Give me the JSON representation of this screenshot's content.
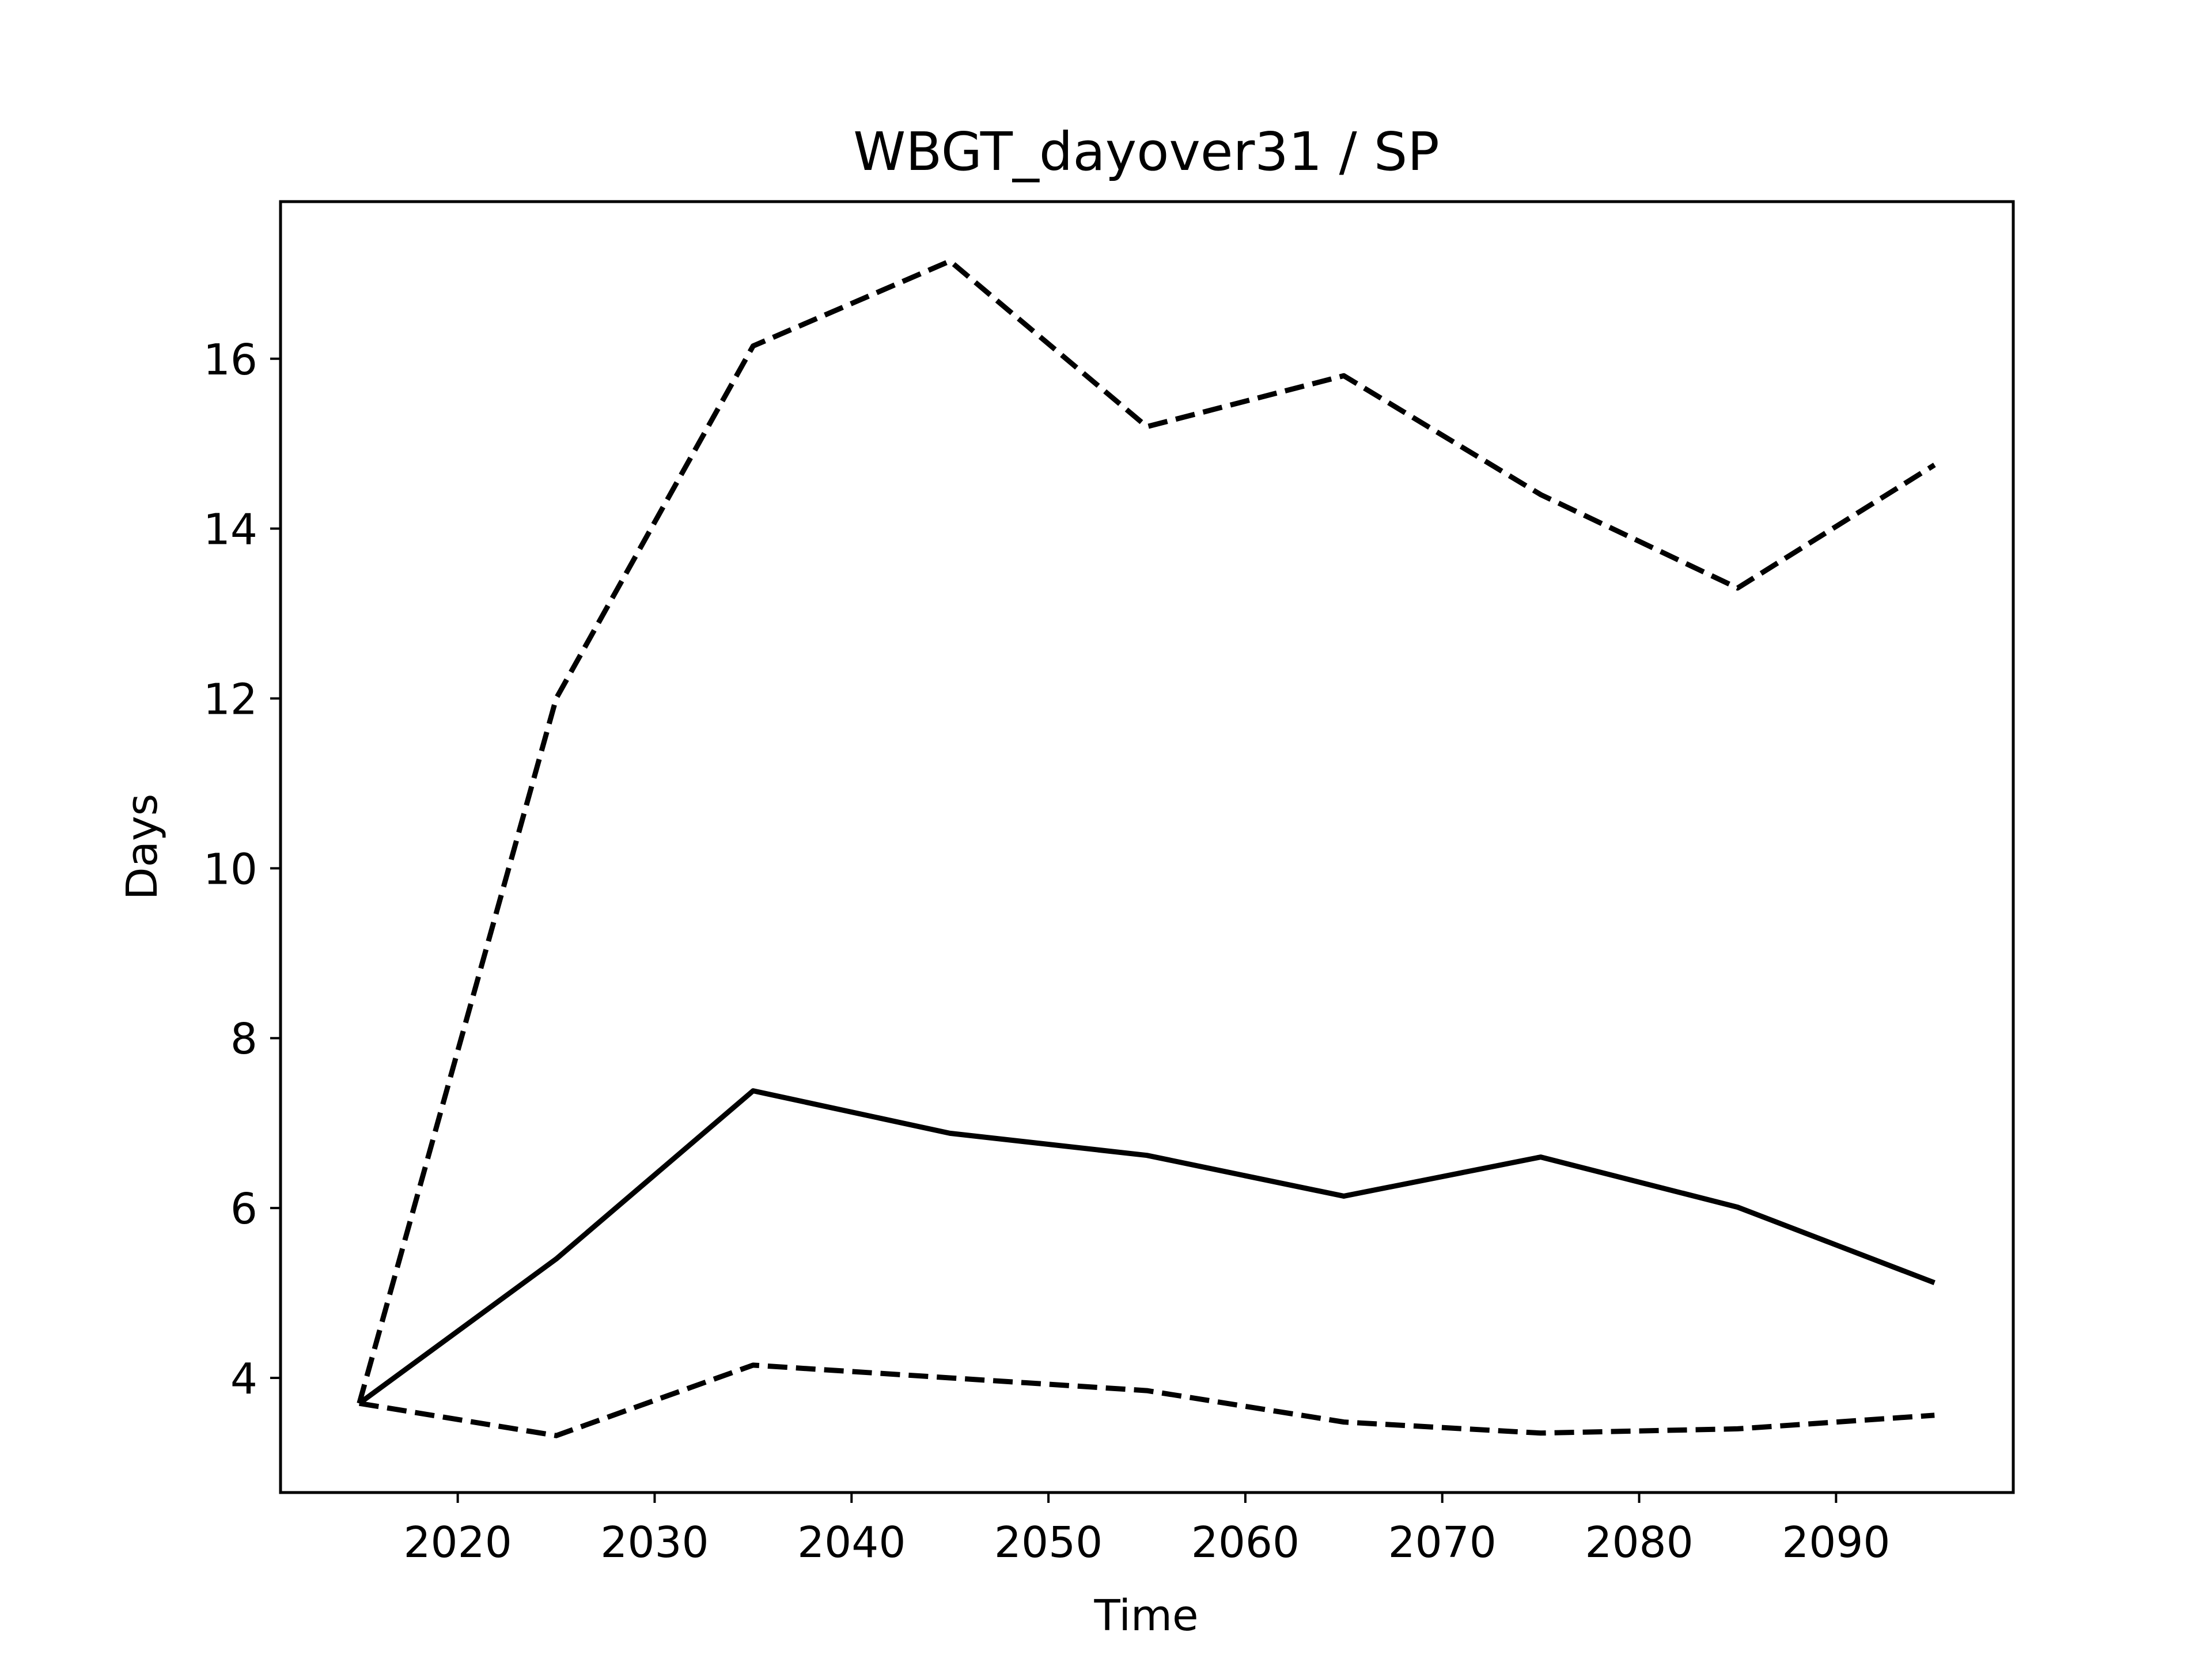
{
  "chart_data": {
    "type": "line",
    "title": "WBGT_dayover31 / SP",
    "xlabel": "Time",
    "ylabel": "Days",
    "xlim": [
      2011,
      2099
    ],
    "ylim": [
      2.65,
      17.85
    ],
    "xticks": [
      2020,
      2030,
      2040,
      2050,
      2060,
      2070,
      2080,
      2090
    ],
    "yticks": [
      4,
      6,
      8,
      10,
      12,
      14,
      16
    ],
    "grid": false,
    "x": [
      2015,
      2025,
      2035,
      2045,
      2055,
      2065,
      2075,
      2085,
      2095
    ],
    "series": [
      {
        "style": "dashed",
        "values": [
          3.7,
          12.0,
          16.15,
          17.15,
          15.2,
          15.8,
          14.4,
          13.3,
          14.75
        ]
      },
      {
        "style": "solid",
        "values": [
          3.7,
          5.4,
          7.38,
          6.88,
          6.62,
          6.14,
          6.6,
          6.01,
          5.12
        ]
      },
      {
        "style": "dashed",
        "values": [
          3.7,
          3.32,
          4.15,
          4.0,
          3.85,
          3.48,
          3.35,
          3.4,
          3.56
        ]
      }
    ]
  }
}
